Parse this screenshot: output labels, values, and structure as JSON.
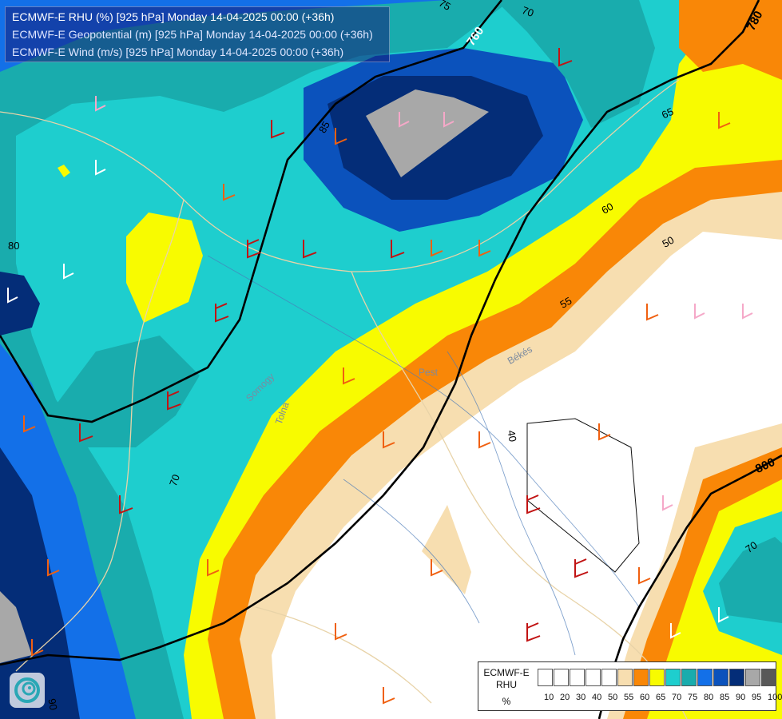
{
  "titles": {
    "line1": "ECMWF-E RHU (%) [925 hPa] Monday 14-04-2025 00:00 (+36h)",
    "line2": "ECMWF-E Geopotential (m) [925 hPa] Monday 14-04-2025 00:00 (+36h)",
    "line3": "ECMWF-E Wind (m/s) [925 hPa] Monday 14-04-2025 00:00 (+36h)"
  },
  "legend": {
    "title_line1": "ECMWF-E",
    "title_line2": "RHU",
    "unit": "%",
    "colors": [
      "#ffffff",
      "#ffffff",
      "#ffffff",
      "#ffffff",
      "#ffffff",
      "#f7deb0",
      "#f98707",
      "#f8fb00",
      "#1ecece",
      "#19acad",
      "#1370e8",
      "#0b52bc",
      "#042d78",
      "#a8a8a8",
      "#585858"
    ],
    "ticks": [
      "10",
      "20",
      "30",
      "40",
      "50",
      "55",
      "60",
      "65",
      "70",
      "75",
      "80",
      "85",
      "90",
      "95",
      "100"
    ]
  },
  "contour_labels": {
    "geo_760": "760",
    "geo_780": "780",
    "geo_800": "800",
    "rh_40": "40",
    "rh_50": "50",
    "rh_55": "55",
    "rh_60": "60",
    "rh_65": "65",
    "rh_70a": "70",
    "rh_70b": "70",
    "rh_70c": "70",
    "rh_75": "75",
    "rh_80": "80",
    "rh_85": "85",
    "rh_90": "90"
  },
  "place_labels": {
    "pest": "Pest",
    "bekes": "Békés",
    "tolna": "Tolna",
    "somogy": "Somogy"
  },
  "icons": {
    "logo": "ogimet-swirl-logo"
  }
}
